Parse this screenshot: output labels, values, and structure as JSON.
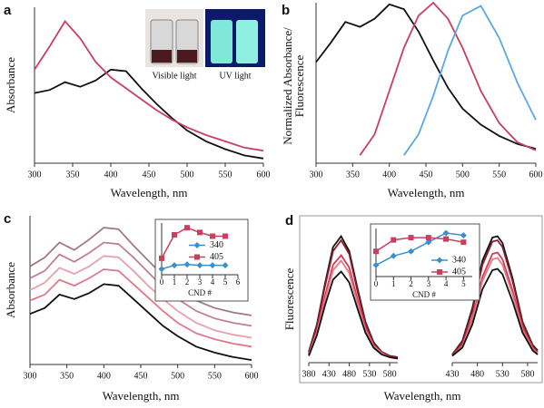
{
  "chart_data": [
    {
      "type": "line",
      "label": "a",
      "xlabel": "Wavelength, nm",
      "ylabel": "Absorbance",
      "annotations": [
        "Visible light",
        "UV light"
      ],
      "xlim": [
        300,
        600
      ],
      "xticks": [
        300,
        350,
        400,
        450,
        500,
        550,
        600
      ],
      "ylim": [
        0,
        1
      ],
      "x": [
        300,
        320,
        340,
        360,
        380,
        400,
        420,
        440,
        460,
        480,
        500,
        525,
        550,
        575,
        600
      ],
      "series": [
        {
          "color": "#111111",
          "values": [
            0.45,
            0.47,
            0.52,
            0.49,
            0.53,
            0.6,
            0.59,
            0.48,
            0.38,
            0.29,
            0.21,
            0.14,
            0.09,
            0.05,
            0.03
          ]
        },
        {
          "color": "#c8405e",
          "values": [
            0.6,
            0.75,
            0.91,
            0.8,
            0.65,
            0.55,
            0.48,
            0.41,
            0.34,
            0.28,
            0.23,
            0.18,
            0.14,
            0.1,
            0.08
          ]
        }
      ]
    },
    {
      "type": "line",
      "label": "b",
      "xlabel": "Wavelength, nm",
      "ylabel": [
        "Normalized Absorbance/",
        "Fluorescence"
      ],
      "xlim": [
        300,
        600
      ],
      "xticks": [
        300,
        350,
        400,
        450,
        500,
        550,
        600
      ],
      "ylim": [
        0,
        1
      ],
      "x": [
        300,
        320,
        340,
        360,
        380,
        400,
        420,
        440,
        460,
        480,
        500,
        525,
        550,
        575,
        600
      ],
      "series": [
        {
          "color": "#111111",
          "values": [
            0.63,
            0.75,
            0.88,
            0.85,
            0.9,
            0.99,
            0.96,
            0.82,
            0.64,
            0.47,
            0.34,
            0.24,
            0.17,
            0.12,
            0.09
          ]
        },
        {
          "color": "#c8405e",
          "values": [
            null,
            null,
            null,
            0.05,
            0.18,
            0.45,
            0.72,
            0.92,
            1.0,
            0.9,
            0.72,
            0.45,
            0.25,
            0.13,
            0.08
          ]
        },
        {
          "color": "#5aa9e0",
          "values": [
            null,
            null,
            null,
            null,
            null,
            null,
            0.05,
            0.18,
            0.42,
            0.7,
            0.92,
            0.98,
            0.78,
            0.5,
            0.27
          ]
        }
      ]
    },
    {
      "type": "line",
      "label": "c",
      "xlabel": "Wavelength,  nm",
      "ylabel": "Absorbance",
      "xlim": [
        300,
        600
      ],
      "xticks": [
        300,
        350,
        400,
        450,
        500,
        550,
        600
      ],
      "ylim": [
        0,
        1
      ],
      "x": [
        300,
        320,
        340,
        360,
        380,
        400,
        420,
        440,
        460,
        480,
        500,
        525,
        550,
        575,
        600
      ],
      "series": [
        {
          "color": "#a07888",
          "values": [
            0.66,
            0.72,
            0.82,
            0.77,
            0.84,
            0.92,
            0.91,
            0.8,
            0.7,
            0.6,
            0.51,
            0.43,
            0.38,
            0.35,
            0.33
          ]
        },
        {
          "color": "#c08090",
          "values": [
            0.58,
            0.63,
            0.74,
            0.69,
            0.75,
            0.82,
            0.81,
            0.72,
            0.62,
            0.52,
            0.44,
            0.36,
            0.31,
            0.28,
            0.26
          ]
        },
        {
          "color": "#e8a0aa",
          "values": [
            0.5,
            0.55,
            0.65,
            0.61,
            0.66,
            0.73,
            0.72,
            0.63,
            0.53,
            0.44,
            0.36,
            0.28,
            0.23,
            0.2,
            0.18
          ]
        },
        {
          "color": "#e0788a",
          "values": [
            0.43,
            0.47,
            0.57,
            0.53,
            0.58,
            0.64,
            0.63,
            0.54,
            0.45,
            0.36,
            0.28,
            0.21,
            0.17,
            0.14,
            0.12
          ]
        },
        {
          "color": "#111111",
          "values": [
            0.34,
            0.38,
            0.47,
            0.44,
            0.48,
            0.54,
            0.53,
            0.44,
            0.35,
            0.26,
            0.19,
            0.12,
            0.08,
            0.05,
            0.03
          ]
        }
      ],
      "inset": {
        "type": "line",
        "xlabel": "CND #",
        "xlim": [
          0,
          6
        ],
        "xticks": [
          0,
          1,
          2,
          3,
          4,
          5,
          6
        ],
        "ylim": [
          0,
          1.1
        ],
        "legend": "center",
        "x": [
          0,
          1,
          2,
          3,
          4,
          5
        ],
        "series": [
          {
            "name": "340",
            "color": "#3a8fd0",
            "marker": "diamond",
            "values": [
              0.12,
              0.2,
              0.22,
              0.2,
              0.2,
              0.2
            ]
          },
          {
            "name": "405",
            "color": "#c8405e",
            "marker": "square",
            "values": [
              0.35,
              0.85,
              1.0,
              0.9,
              0.82,
              0.82
            ]
          }
        ]
      }
    },
    {
      "type": "line",
      "label": "d",
      "xlabel": "Wavelength,  nm",
      "ylabel": "Fluorescence",
      "subplots": [
        {
          "xlim": [
            380,
            600
          ],
          "xticks": [
            380,
            430,
            480,
            530,
            580
          ],
          "ylim": [
            0,
            1
          ],
          "x": [
            380,
            400,
            420,
            440,
            460,
            480,
            500,
            520,
            540,
            560,
            580,
            600
          ],
          "series": [
            {
              "color": "#111111",
              "values": [
                0.08,
                0.28,
                0.58,
                0.85,
                0.93,
                0.82,
                0.55,
                0.3,
                0.15,
                0.08,
                0.05,
                0.04
              ]
            },
            {
              "color": "#8b1a2a",
              "values": [
                0.07,
                0.27,
                0.56,
                0.82,
                0.9,
                0.8,
                0.53,
                0.29,
                0.14,
                0.08,
                0.05,
                0.04
              ]
            },
            {
              "color": "#d43a50",
              "values": [
                0.06,
                0.23,
                0.49,
                0.72,
                0.79,
                0.7,
                0.47,
                0.26,
                0.13,
                0.07,
                0.04,
                0.03
              ]
            },
            {
              "color": "#e87888",
              "values": [
                0.06,
                0.22,
                0.46,
                0.68,
                0.75,
                0.66,
                0.44,
                0.24,
                0.12,
                0.07,
                0.04,
                0.03
              ]
            },
            {
              "color": "#111111",
              "values": [
                0.05,
                0.2,
                0.42,
                0.61,
                0.67,
                0.59,
                0.4,
                0.22,
                0.11,
                0.06,
                0.04,
                0.03
              ]
            }
          ]
        },
        {
          "xlim": [
            430,
            600
          ],
          "xticks": [
            430,
            480,
            530,
            580
          ],
          "ylim": [
            0,
            1
          ],
          "x": [
            430,
            450,
            470,
            490,
            510,
            520,
            530,
            550,
            570,
            590,
            600
          ],
          "series": [
            {
              "color": "#111111",
              "values": [
                0.06,
                0.16,
                0.4,
                0.75,
                0.92,
                0.93,
                0.88,
                0.62,
                0.3,
                0.13,
                0.09
              ]
            },
            {
              "color": "#8b1a2a",
              "values": [
                0.06,
                0.15,
                0.38,
                0.72,
                0.89,
                0.9,
                0.85,
                0.6,
                0.29,
                0.12,
                0.08
              ]
            },
            {
              "color": "#d43a50",
              "values": [
                0.05,
                0.13,
                0.33,
                0.63,
                0.8,
                0.81,
                0.76,
                0.53,
                0.26,
                0.11,
                0.07
              ]
            },
            {
              "color": "#e87888",
              "values": [
                0.05,
                0.12,
                0.31,
                0.6,
                0.76,
                0.77,
                0.72,
                0.5,
                0.24,
                0.1,
                0.07
              ]
            },
            {
              "color": "#111111",
              "values": [
                0.05,
                0.11,
                0.28,
                0.54,
                0.68,
                0.69,
                0.65,
                0.45,
                0.22,
                0.09,
                0.06
              ]
            }
          ]
        }
      ],
      "inset": {
        "type": "line",
        "xlabel": "CND #",
        "xlim": [
          0,
          5.5
        ],
        "xticks": [
          0,
          1,
          2,
          3,
          4,
          5
        ],
        "ylim": [
          0,
          1.05
        ],
        "legend": "lower right",
        "x": [
          0,
          1,
          2,
          3,
          4,
          5
        ],
        "series": [
          {
            "name": "340",
            "color": "#3a8fd0",
            "marker": "diamond",
            "values": [
              0.25,
              0.45,
              0.55,
              0.75,
              0.95,
              0.9
            ]
          },
          {
            "name": "405",
            "color": "#c8405e",
            "marker": "square",
            "values": [
              0.55,
              0.8,
              0.85,
              0.85,
              0.82,
              0.75
            ]
          }
        ]
      }
    }
  ]
}
